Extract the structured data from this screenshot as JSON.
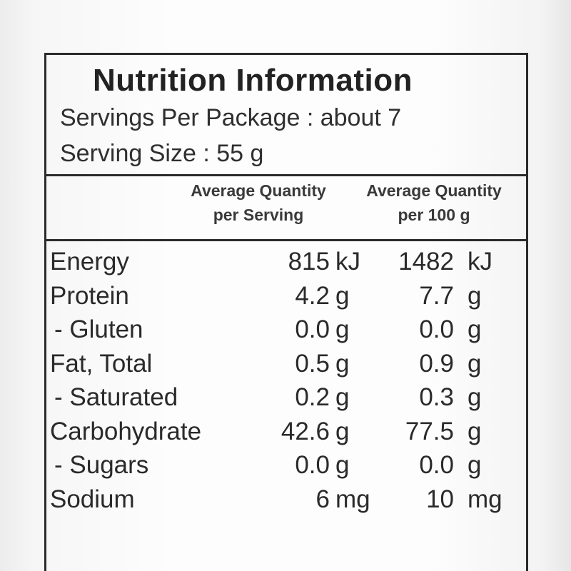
{
  "title": "Nutrition Information",
  "servings_per_package": "Servings Per Package : about 7",
  "serving_size": "Serving Size : 55 g",
  "columns": {
    "per_serving": [
      "Average Quantity",
      "per Serving"
    ],
    "per_100g": [
      "Average Quantity",
      "per 100 g"
    ]
  },
  "rows": [
    {
      "name": "Energy",
      "serving": "815",
      "serving_unit": "kJ",
      "per100": "1482",
      "per100_unit": "kJ"
    },
    {
      "name": "Protein",
      "serving": "4.2",
      "serving_unit": "g",
      "per100": "7.7",
      "per100_unit": "g"
    },
    {
      "name": "- Gluten",
      "serving": "0.0",
      "serving_unit": "g",
      "per100": "0.0",
      "per100_unit": "g"
    },
    {
      "name": "Fat, Total",
      "serving": "0.5",
      "serving_unit": "g",
      "per100": "0.9",
      "per100_unit": "g"
    },
    {
      "name": "- Saturated",
      "serving": "0.2",
      "serving_unit": "g",
      "per100": "0.3",
      "per100_unit": "g"
    },
    {
      "name": "Carbohydrate",
      "serving": "42.6",
      "serving_unit": "g",
      "per100": "77.5",
      "per100_unit": "g"
    },
    {
      "name": "- Sugars",
      "serving": "0.0",
      "serving_unit": "g",
      "per100": "0.0",
      "per100_unit": "g"
    },
    {
      "name": "Sodium",
      "serving": "6",
      "serving_unit": "mg",
      "per100": "10",
      "per100_unit": "mg"
    }
  ]
}
